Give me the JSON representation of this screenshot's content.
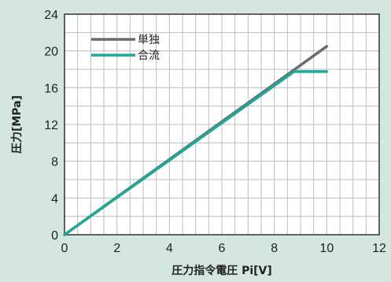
{
  "chart_data": {
    "type": "line",
    "title": "",
    "xlabel": "圧力指令電圧 Pi[V]",
    "ylabel": "圧力[MPa]",
    "xlim": [
      0,
      12
    ],
    "ylim": [
      0,
      24
    ],
    "x_ticks": [
      0,
      2,
      4,
      6,
      8,
      10,
      12
    ],
    "y_ticks": [
      0,
      4,
      8,
      12,
      16,
      20,
      24
    ],
    "grid": true,
    "legend_position": "top-left",
    "series": [
      {
        "name": "単独",
        "color": "#6b6b6b",
        "x": [
          0,
          10
        ],
        "y": [
          0,
          20.5
        ]
      },
      {
        "name": "合流",
        "color": "#1fa896",
        "x": [
          0,
          8.75,
          10
        ],
        "y": [
          0,
          17.75,
          17.75
        ]
      }
    ]
  }
}
